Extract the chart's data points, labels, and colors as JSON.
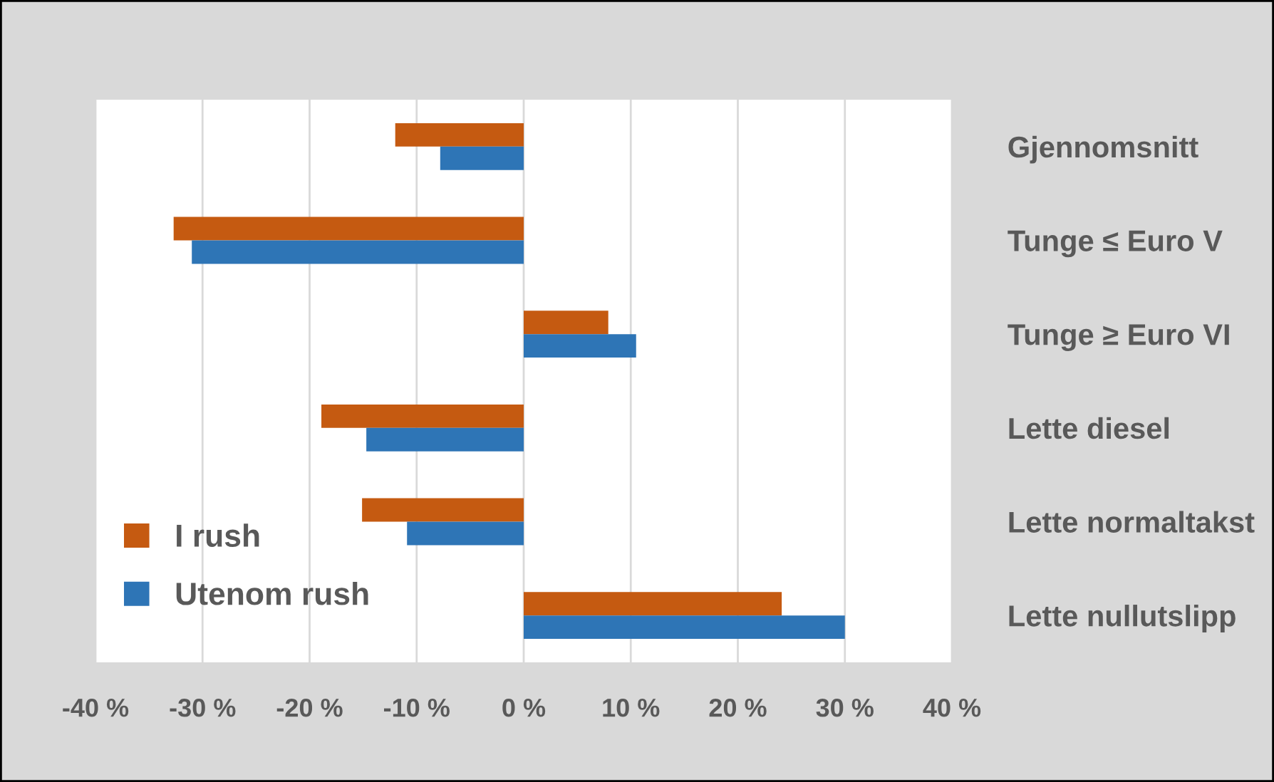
{
  "chart_data": {
    "type": "bar",
    "orientation": "horizontal",
    "categories": [
      "Gjennomsnitt",
      "Tunge ≤ Euro V",
      "Tunge ≥ Euro VI",
      "Lette diesel",
      "Lette normaltakst",
      "Lette nullutslipp"
    ],
    "series": [
      {
        "name": "I rush",
        "color": "#c55a11",
        "values": [
          -12.0,
          -32.7,
          7.9,
          -18.9,
          -15.1,
          24.1
        ]
      },
      {
        "name": "Utenom rush",
        "color": "#2e75b6",
        "values": [
          -7.8,
          -31.0,
          10.5,
          -14.7,
          -10.9,
          30.0
        ]
      }
    ],
    "xlim": [
      -40,
      40
    ],
    "xticks": [
      {
        "value": -40,
        "label": "-40 %"
      },
      {
        "value": -30,
        "label": "-30 %"
      },
      {
        "value": -20,
        "label": "-20 %"
      },
      {
        "value": -10,
        "label": "-10 %"
      },
      {
        "value": 0,
        "label": "0 %"
      },
      {
        "value": 10,
        "label": "10 %"
      },
      {
        "value": 20,
        "label": "20 %"
      },
      {
        "value": 30,
        "label": "30 %"
      },
      {
        "value": 40,
        "label": "40 %"
      }
    ],
    "grid": "x",
    "legend": "bottom left"
  }
}
